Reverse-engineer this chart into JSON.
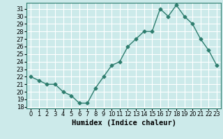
{
  "x": [
    0,
    1,
    2,
    3,
    4,
    5,
    6,
    7,
    8,
    9,
    10,
    11,
    12,
    13,
    14,
    15,
    16,
    17,
    18,
    19,
    20,
    21,
    22,
    23
  ],
  "y": [
    22,
    21.5,
    21,
    21,
    20,
    19.5,
    18.5,
    18.5,
    20.5,
    22,
    23.5,
    24,
    26,
    27,
    28,
    28,
    31,
    30,
    31.5,
    30,
    29,
    27,
    25.5,
    23.5
  ],
  "xlabel": "Humidex (Indice chaleur)",
  "xlim": [
    -0.5,
    23.5
  ],
  "ylim": [
    17.8,
    31.8
  ],
  "yticks": [
    18,
    19,
    20,
    21,
    22,
    23,
    24,
    25,
    26,
    27,
    28,
    29,
    30,
    31
  ],
  "xticks": [
    0,
    1,
    2,
    3,
    4,
    5,
    6,
    7,
    8,
    9,
    10,
    11,
    12,
    13,
    14,
    15,
    16,
    17,
    18,
    19,
    20,
    21,
    22,
    23
  ],
  "line_color": "#2e7d6e",
  "marker": "D",
  "marker_size": 2.5,
  "line_width": 1.0,
  "bg_color": "#cceaea",
  "grid_color": "#ffffff",
  "xlabel_fontsize": 7.5,
  "tick_fontsize": 6.0
}
